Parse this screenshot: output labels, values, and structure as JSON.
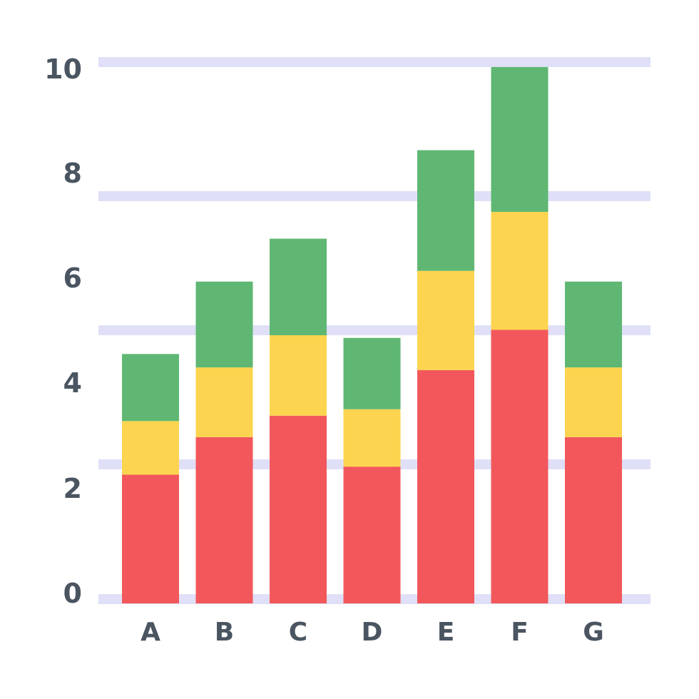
{
  "chart_data": {
    "type": "bar",
    "stacked": true,
    "categories": [
      "A",
      "B",
      "C",
      "D",
      "E",
      "F",
      "G"
    ],
    "series": [
      {
        "values": [
          2.4,
          3.1,
          3.5,
          2.55,
          4.35,
          5.1,
          3.1
        ],
        "color": "#f2585b"
      },
      {
        "values": [
          1.0,
          1.3,
          1.5,
          1.07,
          1.85,
          2.2,
          1.3
        ],
        "color": "#fcd44f"
      },
      {
        "values": [
          1.25,
          1.6,
          1.8,
          1.33,
          2.25,
          2.7,
          1.6
        ],
        "color": "#5fb773"
      }
    ],
    "y_ticks": [
      "0",
      "2",
      "4",
      "6",
      "8",
      "10"
    ],
    "ylim": [
      0,
      10
    ],
    "grid": true,
    "grid_color": "#dfe0f7",
    "label_color": "#4a5561",
    "legend": false,
    "title": "",
    "xlabel": "",
    "ylabel": ""
  }
}
